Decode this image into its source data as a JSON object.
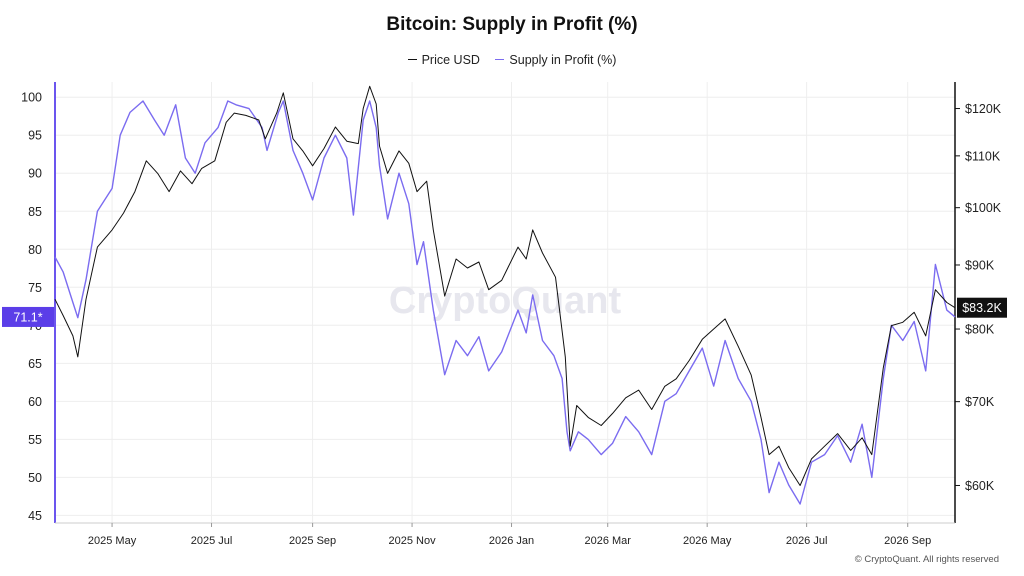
{
  "chart_data": {
    "type": "line",
    "title": "Bitcoin: Supply in Profit (%)",
    "xlabel": "",
    "ylabel_left": "",
    "ylabel_right": "",
    "x_range": [
      "2025-03-27",
      "2026-09-30"
    ],
    "x_ticks": [
      {
        "date": "2025-05-01",
        "label": "2025 May"
      },
      {
        "date": "2025-07-01",
        "label": "2025 Jul"
      },
      {
        "date": "2025-09-01",
        "label": "2025 Sep"
      },
      {
        "date": "2025-11-01",
        "label": "2025 Nov"
      },
      {
        "date": "2026-01-01",
        "label": "2026 Jan"
      },
      {
        "date": "2026-03-01",
        "label": "2026 Mar"
      },
      {
        "date": "2026-05-01",
        "label": "2026 May"
      },
      {
        "date": "2026-07-01",
        "label": "2026 Jul"
      },
      {
        "date": "2026-09-01",
        "label": "2026 Sep"
      }
    ],
    "y_left": {
      "min": 44,
      "max": 102,
      "ticks": [
        45,
        50,
        55,
        60,
        65,
        70,
        75,
        80,
        85,
        90,
        95,
        100
      ]
    },
    "y_right": {
      "min": 56000,
      "max": 126000,
      "scale": "log",
      "ticks": [
        {
          "value": 60000,
          "label": "$60K"
        },
        {
          "value": 70000,
          "label": "$70K"
        },
        {
          "value": 80000,
          "label": "$80K"
        },
        {
          "value": 90000,
          "label": "$90K"
        },
        {
          "value": 100000,
          "label": "$100K"
        },
        {
          "value": 110000,
          "label": "$110K"
        },
        {
          "value": 120000,
          "label": "$120K"
        }
      ]
    },
    "grid": true,
    "legend_position": "top-center",
    "series": [
      {
        "name": "Price USD",
        "axis": "right",
        "color": "#111111",
        "points": [
          [
            "2025-03-27",
            84500
          ],
          [
            "2025-04-01",
            82000
          ],
          [
            "2025-04-07",
            79000
          ],
          [
            "2025-04-10",
            76000
          ],
          [
            "2025-04-15",
            84500
          ],
          [
            "2025-04-22",
            93000
          ],
          [
            "2025-05-01",
            96000
          ],
          [
            "2025-05-08",
            99000
          ],
          [
            "2025-05-15",
            103000
          ],
          [
            "2025-05-22",
            109000
          ],
          [
            "2025-05-29",
            106500
          ],
          [
            "2025-06-05",
            103000
          ],
          [
            "2025-06-12",
            107000
          ],
          [
            "2025-06-19",
            104500
          ],
          [
            "2025-06-25",
            107500
          ],
          [
            "2025-07-03",
            109000
          ],
          [
            "2025-07-10",
            117000
          ],
          [
            "2025-07-15",
            119000
          ],
          [
            "2025-07-22",
            118500
          ],
          [
            "2025-07-30",
            117500
          ],
          [
            "2025-08-03",
            113500
          ],
          [
            "2025-08-10",
            119000
          ],
          [
            "2025-08-14",
            123500
          ],
          [
            "2025-08-20",
            113500
          ],
          [
            "2025-08-26",
            111000
          ],
          [
            "2025-09-01",
            108000
          ],
          [
            "2025-09-08",
            111500
          ],
          [
            "2025-09-15",
            116000
          ],
          [
            "2025-09-22",
            113000
          ],
          [
            "2025-09-29",
            112500
          ],
          [
            "2025-10-02",
            120000
          ],
          [
            "2025-10-06",
            125000
          ],
          [
            "2025-10-10",
            121000
          ],
          [
            "2025-10-12",
            112000
          ],
          [
            "2025-10-17",
            106500
          ],
          [
            "2025-10-24",
            111000
          ],
          [
            "2025-10-30",
            108500
          ],
          [
            "2025-11-04",
            103000
          ],
          [
            "2025-11-10",
            105000
          ],
          [
            "2025-11-14",
            96000
          ],
          [
            "2025-11-21",
            85000
          ],
          [
            "2025-11-28",
            91000
          ],
          [
            "2025-12-05",
            89500
          ],
          [
            "2025-12-12",
            90500
          ],
          [
            "2025-12-18",
            86000
          ],
          [
            "2025-12-26",
            87500
          ],
          [
            "2026-01-05",
            93000
          ],
          [
            "2026-01-10",
            91000
          ],
          [
            "2026-01-14",
            96000
          ],
          [
            "2026-01-20",
            92000
          ],
          [
            "2026-01-28",
            88000
          ],
          [
            "2026-02-03",
            76000
          ],
          [
            "2026-02-06",
            64500
          ],
          [
            "2026-02-10",
            69500
          ],
          [
            "2026-02-17",
            68000
          ],
          [
            "2026-02-25",
            67000
          ],
          [
            "2026-03-04",
            68500
          ],
          [
            "2026-03-12",
            70500
          ],
          [
            "2026-03-20",
            71500
          ],
          [
            "2026-03-28",
            69000
          ],
          [
            "2026-04-05",
            72000
          ],
          [
            "2026-04-12",
            73000
          ],
          [
            "2026-04-20",
            75500
          ],
          [
            "2026-04-28",
            78500
          ],
          [
            "2026-05-05",
            80000
          ],
          [
            "2026-05-12",
            81500
          ],
          [
            "2026-05-20",
            77500
          ],
          [
            "2026-05-28",
            73500
          ],
          [
            "2026-06-03",
            68000
          ],
          [
            "2026-06-08",
            63500
          ],
          [
            "2026-06-14",
            64500
          ],
          [
            "2026-06-20",
            62000
          ],
          [
            "2026-06-27",
            60000
          ],
          [
            "2026-07-04",
            63000
          ],
          [
            "2026-07-12",
            64500
          ],
          [
            "2026-07-20",
            66000
          ],
          [
            "2026-07-28",
            64000
          ],
          [
            "2026-08-04",
            65500
          ],
          [
            "2026-08-10",
            63500
          ],
          [
            "2026-08-17",
            74500
          ],
          [
            "2026-08-22",
            80500
          ],
          [
            "2026-08-29",
            81000
          ],
          [
            "2026-09-05",
            82500
          ],
          [
            "2026-09-12",
            79000
          ],
          [
            "2026-09-18",
            86000
          ],
          [
            "2026-09-25",
            84000
          ],
          [
            "2026-09-30",
            83200
          ]
        ]
      },
      {
        "name": "Supply in Profit (%)",
        "axis": "left",
        "color": "#7b6cf0",
        "points": [
          [
            "2025-03-27",
            79
          ],
          [
            "2025-04-01",
            77
          ],
          [
            "2025-04-07",
            73
          ],
          [
            "2025-04-10",
            71
          ],
          [
            "2025-04-15",
            76
          ],
          [
            "2025-04-22",
            85
          ],
          [
            "2025-05-01",
            88
          ],
          [
            "2025-05-06",
            95
          ],
          [
            "2025-05-12",
            98
          ],
          [
            "2025-05-20",
            99.5
          ],
          [
            "2025-05-27",
            97
          ],
          [
            "2025-06-02",
            95
          ],
          [
            "2025-06-09",
            99
          ],
          [
            "2025-06-15",
            92
          ],
          [
            "2025-06-21",
            90
          ],
          [
            "2025-06-27",
            94
          ],
          [
            "2025-07-05",
            96
          ],
          [
            "2025-07-11",
            99.5
          ],
          [
            "2025-07-16",
            99
          ],
          [
            "2025-07-24",
            98.5
          ],
          [
            "2025-08-01",
            96
          ],
          [
            "2025-08-04",
            93
          ],
          [
            "2025-08-11",
            98
          ],
          [
            "2025-08-14",
            99.5
          ],
          [
            "2025-08-20",
            93
          ],
          [
            "2025-08-26",
            90
          ],
          [
            "2025-09-01",
            86.5
          ],
          [
            "2025-09-08",
            92
          ],
          [
            "2025-09-15",
            95
          ],
          [
            "2025-09-22",
            92
          ],
          [
            "2025-09-26",
            84.5
          ],
          [
            "2025-10-02",
            97
          ],
          [
            "2025-10-06",
            99.5
          ],
          [
            "2025-10-10",
            96
          ],
          [
            "2025-10-12",
            91
          ],
          [
            "2025-10-17",
            84
          ],
          [
            "2025-10-24",
            90
          ],
          [
            "2025-10-30",
            86
          ],
          [
            "2025-11-04",
            78
          ],
          [
            "2025-11-08",
            81
          ],
          [
            "2025-11-14",
            72
          ],
          [
            "2025-11-21",
            63.5
          ],
          [
            "2025-11-28",
            68
          ],
          [
            "2025-12-05",
            66
          ],
          [
            "2025-12-12",
            68.5
          ],
          [
            "2025-12-18",
            64
          ],
          [
            "2025-12-26",
            66.5
          ],
          [
            "2026-01-05",
            72
          ],
          [
            "2026-01-10",
            69
          ],
          [
            "2026-01-14",
            74
          ],
          [
            "2026-01-20",
            68
          ],
          [
            "2026-01-27",
            66
          ],
          [
            "2026-02-01",
            63
          ],
          [
            "2026-02-04",
            56
          ],
          [
            "2026-02-06",
            53.5
          ],
          [
            "2026-02-11",
            56
          ],
          [
            "2026-02-17",
            55
          ],
          [
            "2026-02-25",
            53
          ],
          [
            "2026-03-04",
            54.5
          ],
          [
            "2026-03-12",
            58
          ],
          [
            "2026-03-20",
            56
          ],
          [
            "2026-03-28",
            53
          ],
          [
            "2026-04-05",
            60
          ],
          [
            "2026-04-12",
            61
          ],
          [
            "2026-04-20",
            64
          ],
          [
            "2026-04-28",
            67
          ],
          [
            "2026-05-05",
            62
          ],
          [
            "2026-05-12",
            68
          ],
          [
            "2026-05-20",
            63
          ],
          [
            "2026-05-28",
            60
          ],
          [
            "2026-06-03",
            55
          ],
          [
            "2026-06-08",
            48
          ],
          [
            "2026-06-14",
            52
          ],
          [
            "2026-06-20",
            49
          ],
          [
            "2026-06-27",
            46.5
          ],
          [
            "2026-07-04",
            52
          ],
          [
            "2026-07-12",
            53
          ],
          [
            "2026-07-20",
            55.5
          ],
          [
            "2026-07-28",
            52
          ],
          [
            "2026-08-04",
            57
          ],
          [
            "2026-08-10",
            50
          ],
          [
            "2026-08-17",
            63
          ],
          [
            "2026-08-22",
            70
          ],
          [
            "2026-08-29",
            68
          ],
          [
            "2026-09-05",
            70.5
          ],
          [
            "2026-09-12",
            64
          ],
          [
            "2026-09-18",
            78
          ],
          [
            "2026-09-25",
            72
          ],
          [
            "2026-09-30",
            71.1
          ]
        ]
      }
    ],
    "current_labels": {
      "left": "71.1*",
      "right": "$83.2K"
    }
  },
  "watermark": "CryptoQuant",
  "copyright": "© CryptoQuant. All rights reserved",
  "colors": {
    "price": "#111111",
    "supply": "#7b6cf0",
    "grid": "#eeeeee",
    "left_badge": "#5b3ee8",
    "right_badge": "#111111"
  }
}
